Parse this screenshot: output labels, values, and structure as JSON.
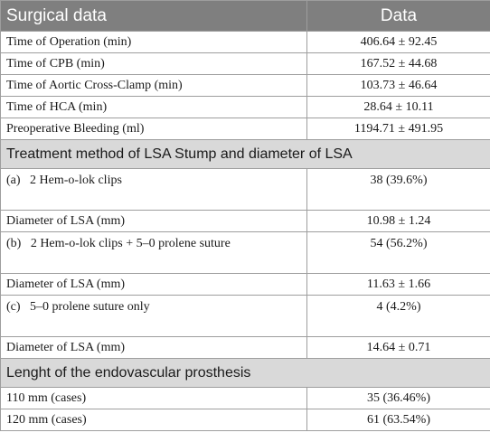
{
  "header": {
    "col1": "Surgical data",
    "col2": "Data"
  },
  "surgical": [
    {
      "label": "Time of Operation (min)",
      "value": "406.64 ± 92.45"
    },
    {
      "label": "Time of CPB (min)",
      "value": "167.52 ± 44.68"
    },
    {
      "label": "Time of Aortic Cross-Clamp (min)",
      "value": "103.73 ± 46.64"
    },
    {
      "label": "Time of HCA (min)",
      "value": "28.64 ± 10.11"
    },
    {
      "label": "Preoperative Bleeding (ml)",
      "value": "1194.71 ± 491.95"
    }
  ],
  "section_lsa": "Treatment method of LSA Stump and diameter of LSA",
  "lsa": [
    {
      "method": "(a)   2 Hem-o-lok clips",
      "count": "38 (39.6%)",
      "diam_label": "Diameter of LSA (mm)",
      "diam_value": "10.98 ± 1.24"
    },
    {
      "method": "(b)   2 Hem-o-lok clips + 5–0 prolene suture",
      "count": "54 (56.2%)",
      "diam_label": "Diameter of LSA (mm)",
      "diam_value": "11.63 ± 1.66"
    },
    {
      "method": "(c)   5–0 prolene suture only",
      "count": "4 (4.2%)",
      "diam_label": "Diameter of LSA (mm)",
      "diam_value": "14.64 ± 0.71"
    }
  ],
  "section_length": "Lenght of the endovascular prosthesis",
  "length": [
    {
      "label": "110 mm (cases)",
      "value": "35 (36.46%)"
    },
    {
      "label": "120 mm (cases)",
      "value": "61 (63.54%)"
    }
  ]
}
